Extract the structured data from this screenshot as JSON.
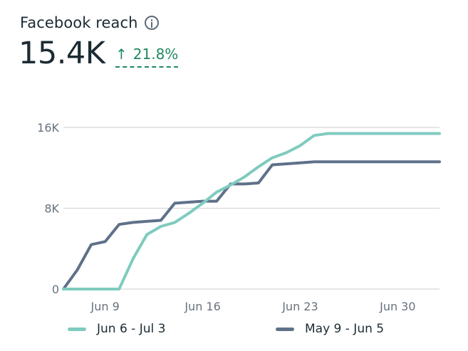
{
  "header": {
    "title": "Facebook reach",
    "info_icon": "info-icon",
    "metric_value": "15.4K",
    "change_arrow": "↑",
    "change_percent": "21.8%"
  },
  "colors": {
    "current": "#7fcbbf",
    "previous": "#5f7189",
    "positive": "#1f8a5e",
    "grid": "#d4d7db"
  },
  "chart_data": {
    "type": "line",
    "title": "Facebook reach",
    "xlabel": "",
    "ylabel": "",
    "ylim": [
      0,
      16000
    ],
    "yticks": [
      0,
      8000,
      16000
    ],
    "ytick_labels": [
      "0",
      "8K",
      "16K"
    ],
    "x_days": 28,
    "xticks_index": [
      3,
      10,
      17,
      24
    ],
    "xtick_labels": [
      "Jun 9",
      "Jun 16",
      "Jun 23",
      "Jun 30"
    ],
    "grid": true,
    "legend_position": "bottom",
    "series": [
      {
        "name": "Jun 6 - Jul 3",
        "color_key": "current",
        "values": [
          0,
          0,
          0,
          0,
          0,
          3000,
          5400,
          6200,
          6600,
          7500,
          8500,
          9600,
          10300,
          11100,
          12100,
          13000,
          13500,
          14200,
          15200,
          15400,
          15400,
          15400,
          15400,
          15400,
          15400,
          15400,
          15400,
          15400
        ]
      },
      {
        "name": "May 9 - Jun 5",
        "color_key": "previous",
        "values": [
          0,
          1900,
          4400,
          4700,
          6400,
          6600,
          6700,
          6800,
          8500,
          8600,
          8700,
          8700,
          10400,
          10400,
          10500,
          12300,
          12400,
          12500,
          12600,
          12600,
          12600,
          12600,
          12600,
          12600,
          12600,
          12600,
          12600,
          12600
        ]
      }
    ]
  }
}
